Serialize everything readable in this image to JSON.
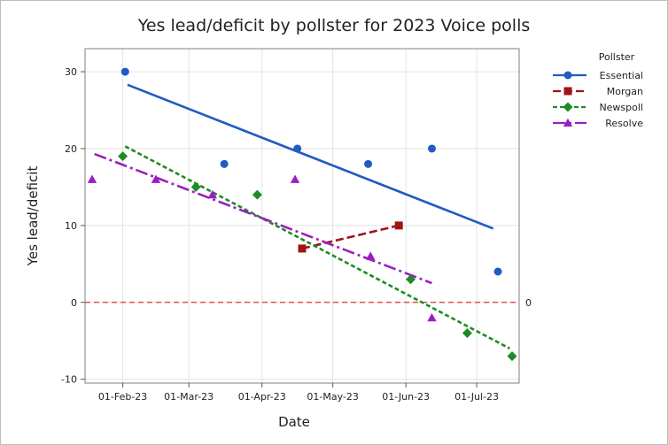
{
  "chart_data": {
    "type": "scatter",
    "title": "Yes lead/deficit by pollster for 2023 Voice polls",
    "xlabel": "Date",
    "ylabel": "Yes lead/deficit",
    "x_ticks": [
      "01-Feb-23",
      "01-Mar-23",
      "01-Apr-23",
      "01-May-23",
      "01-Jun-23",
      "01-Jul-23"
    ],
    "x_tick_days": [
      0,
      28,
      59,
      89,
      120,
      150
    ],
    "x_range_days": [
      -16,
      168
    ],
    "y_ticks": [
      "30",
      "20",
      "10",
      "0",
      "-10"
    ],
    "y_tick_values": [
      30,
      20,
      10,
      0,
      -10
    ],
    "ylim": [
      -10.5,
      33
    ],
    "reference_line": {
      "y": 0,
      "label": "0",
      "color": "#e03030"
    },
    "legend_title": "Pollster",
    "series": [
      {
        "name": "Essential",
        "color": "#1f5cc1",
        "marker": "circle",
        "dash": "",
        "points": [
          {
            "x": 1,
            "y": 30
          },
          {
            "x": 43,
            "y": 18
          },
          {
            "x": 74,
            "y": 20
          },
          {
            "x": 104,
            "y": 18
          },
          {
            "x": 131,
            "y": 20
          },
          {
            "x": 159,
            "y": 4
          }
        ],
        "trend": [
          {
            "x": 2,
            "y": 28.3
          },
          {
            "x": 157,
            "y": 9.6
          }
        ]
      },
      {
        "name": "Morgan",
        "color": "#a01414",
        "marker": "square",
        "dash": "9,4",
        "points": [
          {
            "x": 76,
            "y": 7
          },
          {
            "x": 117,
            "y": 10
          }
        ],
        "trend": [
          {
            "x": 76,
            "y": 7
          },
          {
            "x": 117,
            "y": 10
          }
        ]
      },
      {
        "name": "Newspoll",
        "color": "#1e8c24",
        "marker": "diamond",
        "dash": "5,3",
        "points": [
          {
            "x": 0,
            "y": 19
          },
          {
            "x": 31,
            "y": 15
          },
          {
            "x": 57,
            "y": 14
          },
          {
            "x": 122,
            "y": 3
          },
          {
            "x": 146,
            "y": -4
          },
          {
            "x": 165,
            "y": -7
          }
        ],
        "trend": [
          {
            "x": 1,
            "y": 20.3
          },
          {
            "x": 164,
            "y": -6
          }
        ]
      },
      {
        "name": "Resolve",
        "color": "#9a1fbf",
        "marker": "triangle",
        "dash": "14,4,3,4",
        "points": [
          {
            "x": -13,
            "y": 16
          },
          {
            "x": 14,
            "y": 16
          },
          {
            "x": 38,
            "y": 14
          },
          {
            "x": 73,
            "y": 16
          },
          {
            "x": 105,
            "y": 6
          },
          {
            "x": 131,
            "y": -2
          }
        ],
        "trend": [
          {
            "x": -12,
            "y": 19.3
          },
          {
            "x": 131,
            "y": 2.5
          }
        ]
      }
    ]
  }
}
